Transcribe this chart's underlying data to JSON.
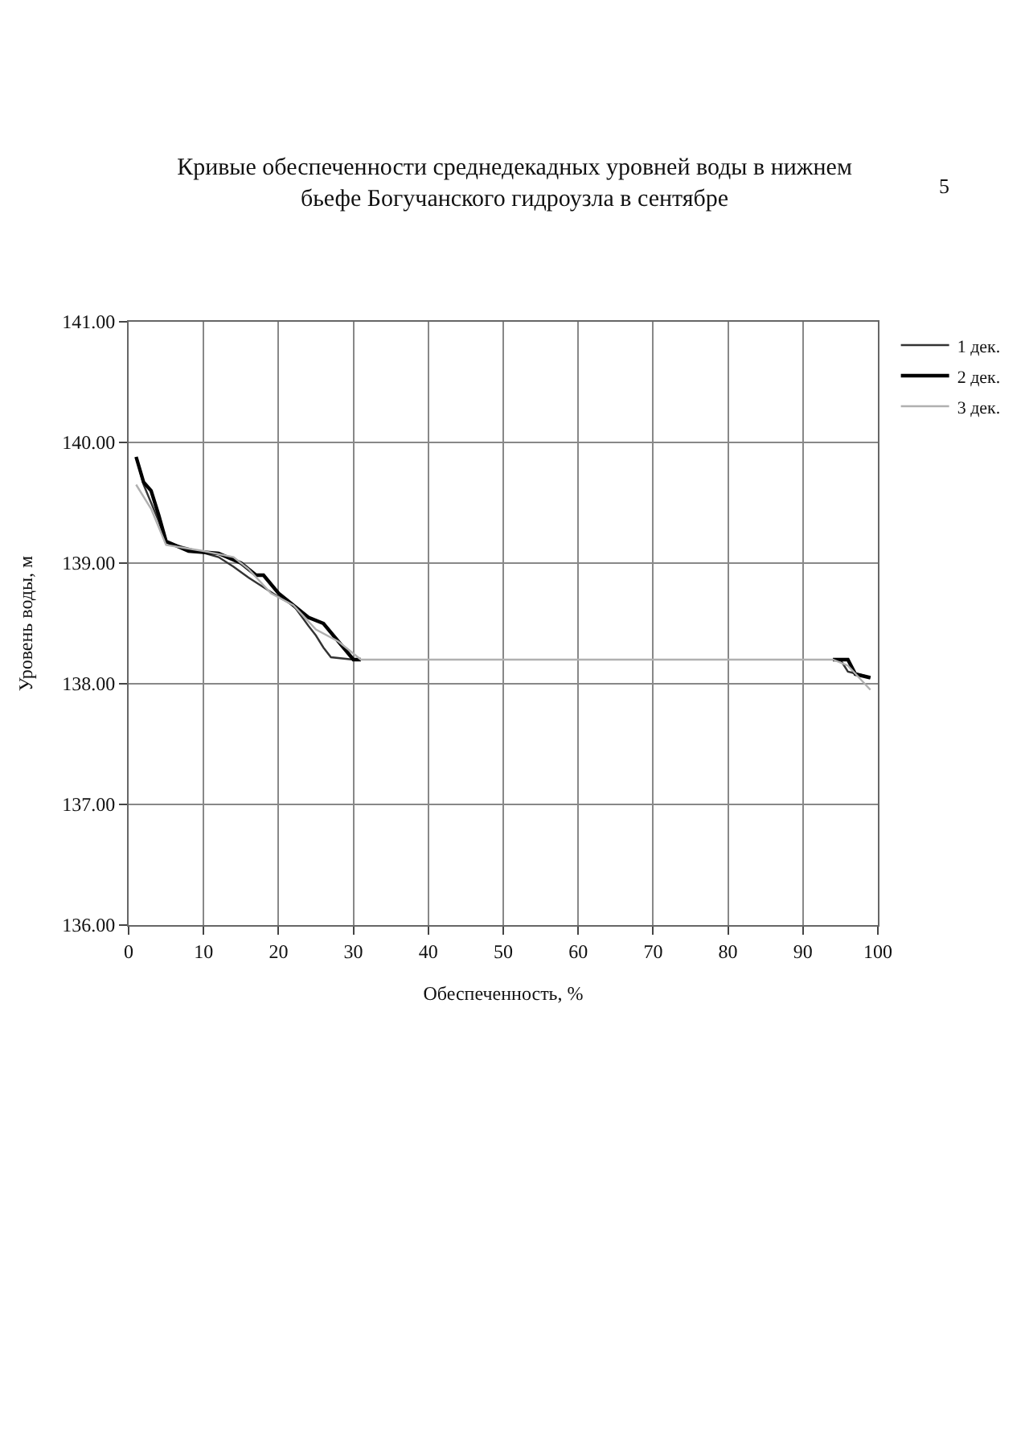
{
  "chart_data": {
    "type": "line",
    "title": "Кривые обеспеченности среднедекадных уровней воды в нижнем бьефе Богучанского гидроузла в сентябре",
    "xlabel": "Обеспеченность, %",
    "ylabel": "Уровень воды, м",
    "annotations": [
      "5"
    ],
    "series": [
      {
        "name": "1 дек.",
        "color": "#333333",
        "x": [
          1,
          2,
          3,
          4,
          5,
          8,
          12,
          14,
          16,
          18,
          20,
          22,
          24,
          25,
          26,
          27,
          30,
          null,
          95,
          96,
          98,
          99
        ],
        "values": [
          139.88,
          139.65,
          139.5,
          139.35,
          139.17,
          139.12,
          139.05,
          138.97,
          138.88,
          138.8,
          138.72,
          138.65,
          138.48,
          138.4,
          138.3,
          138.22,
          138.2,
          null,
          138.2,
          138.1,
          138.07,
          138.05
        ]
      },
      {
        "name": "2 дек.",
        "color": "#000000",
        "x": [
          1,
          2,
          3,
          4,
          5,
          8,
          12,
          15,
          17,
          18,
          20,
          22,
          24,
          26,
          28,
          30,
          31,
          null,
          94,
          96,
          97,
          99
        ],
        "values": [
          139.88,
          139.67,
          139.6,
          139.4,
          139.18,
          139.1,
          139.08,
          139.0,
          138.9,
          138.9,
          138.75,
          138.65,
          138.55,
          138.5,
          138.35,
          138.2,
          138.2,
          null,
          138.2,
          138.2,
          138.08,
          138.05
        ]
      },
      {
        "name": "3 дек.",
        "color": "#b0b0b0",
        "x": [
          1,
          3,
          5,
          10,
          14,
          16,
          19,
          22,
          25,
          28,
          31,
          94,
          96,
          99
        ],
        "values": [
          139.65,
          139.45,
          139.15,
          139.1,
          139.05,
          138.95,
          138.75,
          138.65,
          138.45,
          138.35,
          138.2,
          138.2,
          138.15,
          137.95
        ]
      }
    ],
    "xlim": [
      0,
      100
    ],
    "xticks": [
      0,
      10,
      20,
      30,
      40,
      50,
      60,
      70,
      80,
      90,
      100
    ],
    "ylim": [
      136,
      141
    ],
    "yticks": [
      {
        "value": 136,
        "label": "136.00"
      },
      {
        "value": 137,
        "label": "137.00"
      },
      {
        "value": 138,
        "label": "138.00"
      },
      {
        "value": 139,
        "label": "139.00"
      },
      {
        "value": 140,
        "label": "140.00"
      },
      {
        "value": 141,
        "label": "141.00"
      }
    ],
    "grid": true,
    "legend": "right",
    "marker": "none",
    "line_style": "solid"
  }
}
